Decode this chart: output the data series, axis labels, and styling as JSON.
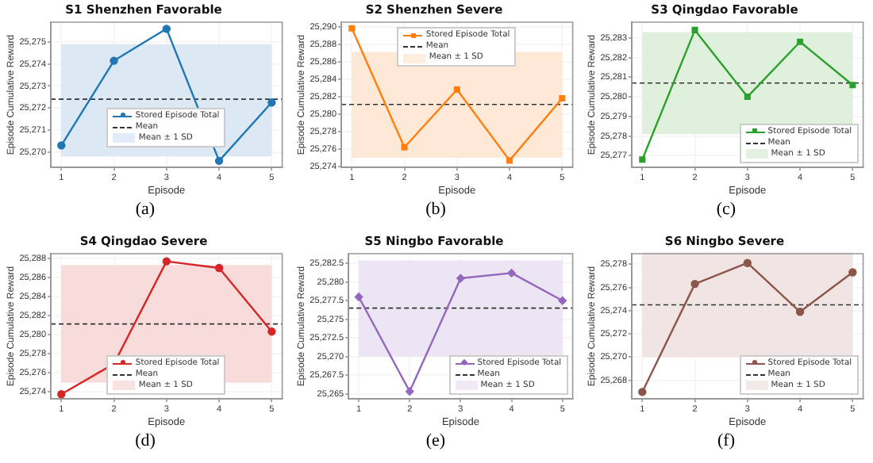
{
  "chart_data": [
    {
      "type": "line",
      "title": "S1 Shenzhen Favorable",
      "xlabel": "Episode",
      "ylabel": "Episode Cumulative Reward",
      "x": [
        1,
        2,
        3,
        4,
        5
      ],
      "xlim": [
        0.8,
        5.2
      ],
      "xticks": [
        1,
        2,
        3,
        4,
        5
      ],
      "series": [
        {
          "name": "Stored Episode Total",
          "color": "#1f77b4",
          "values": [
            25270.3,
            25274.15,
            25275.6,
            25269.6,
            25272.25
          ]
        }
      ],
      "ylim": [
        25269.3,
        25275.9
      ],
      "yticks": [
        {
          "value": 25270,
          "label": "25,270"
        },
        {
          "value": 25271,
          "label": "25,271"
        },
        {
          "value": 25272,
          "label": "25,272"
        },
        {
          "value": 25273,
          "label": "25,273"
        },
        {
          "value": 25274,
          "label": "25,274"
        },
        {
          "value": 25275,
          "label": "25,275"
        }
      ],
      "ref_lines": [
        {
          "axis": "y",
          "value": 25272.4,
          "label": "Mean",
          "color": "#333333",
          "line_style": "dashed"
        }
      ],
      "bands": [
        {
          "axis": "y",
          "from": 25269.8,
          "to": 25274.9,
          "label": "Mean ± 1 SD",
          "color": "#dce8f4"
        }
      ],
      "annotations": [
        "(a)"
      ],
      "grid": true,
      "legend": "bottom",
      "marker": "circle",
      "line_style": "solid"
    },
    {
      "type": "line",
      "title": "S2 Shenzhen Severe",
      "xlabel": "Episode",
      "ylabel": "Episode Cumulative Reward",
      "x": [
        1,
        2,
        3,
        4,
        5
      ],
      "xlim": [
        0.8,
        5.2
      ],
      "xticks": [
        1,
        2,
        3,
        4,
        5
      ],
      "series": [
        {
          "name": "Stored Episode Total",
          "color": "#ff7f0e",
          "values": [
            25289.8,
            25276.2,
            25282.8,
            25274.7,
            25281.8
          ]
        }
      ],
      "ylim": [
        25273.9,
        25290.5
      ],
      "yticks": [
        {
          "value": 25274,
          "label": "25,274"
        },
        {
          "value": 25276,
          "label": "25,276"
        },
        {
          "value": 25278,
          "label": "25,278"
        },
        {
          "value": 25280,
          "label": "25,280"
        },
        {
          "value": 25282,
          "label": "25,282"
        },
        {
          "value": 25284,
          "label": "25,284"
        },
        {
          "value": 25286,
          "label": "25,286"
        },
        {
          "value": 25288,
          "label": "25,288"
        },
        {
          "value": 25290,
          "label": "25,290"
        }
      ],
      "ref_lines": [
        {
          "axis": "y",
          "value": 25281.1,
          "label": "Mean",
          "color": "#333333",
          "line_style": "dashed"
        }
      ],
      "bands": [
        {
          "axis": "y",
          "from": 25275.0,
          "to": 25287.1,
          "label": "Mean ± 1 SD",
          "color": "#fde9d6"
        }
      ],
      "annotations": [
        "(b)"
      ],
      "grid": true,
      "legend": "top",
      "marker": "square",
      "line_style": "solid"
    },
    {
      "type": "line",
      "title": "S3 Qingdao Favorable",
      "xlabel": "Episode",
      "ylabel": "Episode Cumulative Reward",
      "x": [
        1,
        2,
        3,
        4,
        5
      ],
      "xlim": [
        0.8,
        5.2
      ],
      "xticks": [
        1,
        2,
        3,
        4,
        5
      ],
      "series": [
        {
          "name": "Stored Episode Total",
          "color": "#2ca02c",
          "values": [
            25276.8,
            25283.4,
            25280.0,
            25282.8,
            25280.6
          ]
        }
      ],
      "ylim": [
        25276.4,
        25283.8
      ],
      "yticks": [
        {
          "value": 25277,
          "label": "25,277"
        },
        {
          "value": 25278,
          "label": "25,278"
        },
        {
          "value": 25279,
          "label": "25,279"
        },
        {
          "value": 25280,
          "label": "25,280"
        },
        {
          "value": 25281,
          "label": "25,281"
        },
        {
          "value": 25282,
          "label": "25,282"
        },
        {
          "value": 25283,
          "label": "25,283"
        }
      ],
      "ref_lines": [
        {
          "axis": "y",
          "value": 25280.7,
          "label": "Mean",
          "color": "#333333",
          "line_style": "dashed"
        }
      ],
      "bands": [
        {
          "axis": "y",
          "from": 25278.1,
          "to": 25283.3,
          "label": "Mean ± 1 SD",
          "color": "#dff0dc"
        }
      ],
      "annotations": [
        "(c)"
      ],
      "grid": true,
      "legend": "bottom right",
      "marker": "square",
      "line_style": "solid"
    },
    {
      "type": "line",
      "title": "S4 Qingdao Severe",
      "xlabel": "Episode",
      "ylabel": "Episode Cumulative Reward",
      "x": [
        1,
        2,
        3,
        4,
        5
      ],
      "xlim": [
        0.8,
        5.2
      ],
      "xticks": [
        1,
        2,
        3,
        4,
        5
      ],
      "series": [
        {
          "name": "Stored Episode Total",
          "color": "#d62728",
          "values": [
            25273.7,
            25276.9,
            25287.7,
            25287.0,
            25280.3
          ]
        }
      ],
      "ylim": [
        25273.2,
        25288.5
      ],
      "yticks": [
        {
          "value": 25274,
          "label": "25,274"
        },
        {
          "value": 25276,
          "label": "25,276"
        },
        {
          "value": 25278,
          "label": "25,278"
        },
        {
          "value": 25280,
          "label": "25,280"
        },
        {
          "value": 25282,
          "label": "25,282"
        },
        {
          "value": 25284,
          "label": "25,284"
        },
        {
          "value": 25286,
          "label": "25,286"
        },
        {
          "value": 25288,
          "label": "25,288"
        }
      ],
      "ref_lines": [
        {
          "axis": "y",
          "value": 25281.1,
          "label": "Mean",
          "color": "#333333",
          "line_style": "dashed"
        }
      ],
      "bands": [
        {
          "axis": "y",
          "from": 25274.9,
          "to": 25287.3,
          "label": "Mean ± 1 SD",
          "color": "#f8dcdc"
        }
      ],
      "annotations": [
        "(d)"
      ],
      "grid": true,
      "legend": "bottom",
      "marker": "circle",
      "line_style": "solid"
    },
    {
      "type": "line",
      "title": "S5 Ningbo Favorable",
      "xlabel": "Episode",
      "ylabel": "Episode Cumulative Reward",
      "x": [
        1,
        2,
        3,
        4,
        5
      ],
      "xlim": [
        0.8,
        5.2
      ],
      "xticks": [
        1,
        2,
        3,
        4,
        5
      ],
      "series": [
        {
          "name": "Stored Episode Total",
          "color": "#9467bd",
          "values": [
            25278.0,
            25265.3,
            25280.5,
            25281.2,
            25277.5
          ]
        }
      ],
      "ylim": [
        25264.3,
        25283.8
      ],
      "yticks": [
        {
          "value": 25265,
          "label": "25,265"
        },
        {
          "value": 25267.5,
          "label": "25,267.5"
        },
        {
          "value": 25270,
          "label": "25,270"
        },
        {
          "value": 25272.5,
          "label": "25,272.5"
        },
        {
          "value": 25275,
          "label": "25,275"
        },
        {
          "value": 25277.5,
          "label": "25,277.5"
        },
        {
          "value": 25280,
          "label": "25,280"
        },
        {
          "value": 25282.5,
          "label": "25,282.5"
        }
      ],
      "ref_lines": [
        {
          "axis": "y",
          "value": 25276.5,
          "label": "Mean",
          "color": "#333333",
          "line_style": "dashed"
        }
      ],
      "bands": [
        {
          "axis": "y",
          "from": 25270.0,
          "to": 25282.9,
          "label": "Mean ± 1 SD",
          "color": "#ece5f3"
        }
      ],
      "annotations": [
        "(e)"
      ],
      "grid": true,
      "legend": "bottom right",
      "marker": "diamond",
      "line_style": "solid"
    },
    {
      "type": "line",
      "title": "S6 Ningbo Severe",
      "xlabel": "Episode",
      "ylabel": "Episode Cumulative Reward",
      "x": [
        1,
        2,
        3,
        4,
        5
      ],
      "xlim": [
        0.8,
        5.2
      ],
      "xticks": [
        1,
        2,
        3,
        4,
        5
      ],
      "series": [
        {
          "name": "Stored Episode Total",
          "color": "#8c564b",
          "values": [
            25267.0,
            25276.3,
            25278.1,
            25273.9,
            25277.3
          ]
        }
      ],
      "ylim": [
        25266.4,
        25278.9
      ],
      "yticks": [
        {
          "value": 25268,
          "label": "25,268"
        },
        {
          "value": 25270,
          "label": "25,270"
        },
        {
          "value": 25272,
          "label": "25,272"
        },
        {
          "value": 25274,
          "label": "25,274"
        },
        {
          "value": 25276,
          "label": "25,276"
        },
        {
          "value": 25278,
          "label": "25,278"
        }
      ],
      "ref_lines": [
        {
          "axis": "y",
          "value": 25274.5,
          "label": "Mean",
          "color": "#333333",
          "line_style": "dashed"
        }
      ],
      "bands": [
        {
          "axis": "y",
          "from": 25270.0,
          "to": 25279.0,
          "label": "Mean ± 1 SD",
          "color": "#f0e5e3"
        }
      ],
      "annotations": [
        "(f)"
      ],
      "grid": true,
      "legend": "bottom right",
      "marker": "circle",
      "line_style": "solid"
    }
  ]
}
